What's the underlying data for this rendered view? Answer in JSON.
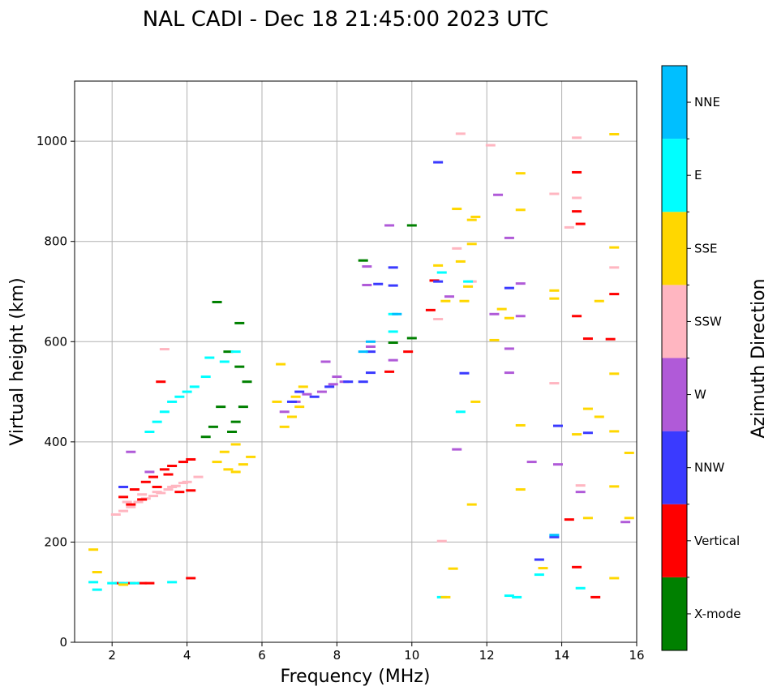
{
  "chart_data": {
    "type": "scatter",
    "title": "NAL CADI - Dec 18 21:45:00 2023 UTC",
    "xlabel": "Frequency (MHz)",
    "ylabel": "Virtual height (km)",
    "xlim": [
      1,
      16
    ],
    "ylim": [
      0,
      1120
    ],
    "xticks": [
      2,
      4,
      6,
      8,
      10,
      12,
      14,
      16
    ],
    "yticks": [
      0,
      200,
      400,
      600,
      800,
      1000
    ],
    "grid": true,
    "colorbar": {
      "label": "Azimuth Direction",
      "categories": [
        {
          "name": "X-mode",
          "color": "#008000"
        },
        {
          "name": "Vertical",
          "color": "#ff0000"
        },
        {
          "name": "NNW",
          "color": "#3a3aff"
        },
        {
          "name": "W",
          "color": "#b05ad8"
        },
        {
          "name": "SSW",
          "color": "#ffb6c1"
        },
        {
          "name": "SSE",
          "color": "#ffd700"
        },
        {
          "name": "E",
          "color": "#00ffff"
        },
        {
          "name": "NNE",
          "color": "#00bfff"
        }
      ]
    },
    "series": [
      {
        "name": "SSW",
        "points": [
          [
            2.1,
            255
          ],
          [
            2.3,
            262
          ],
          [
            2.5,
            270
          ],
          [
            2.7,
            280
          ],
          [
            2.9,
            287
          ],
          [
            3.1,
            292
          ],
          [
            3.3,
            298
          ],
          [
            3.5,
            305
          ],
          [
            3.7,
            312
          ],
          [
            3.9,
            318
          ],
          [
            2.4,
            280
          ],
          [
            2.8,
            295
          ],
          [
            3.2,
            300
          ],
          [
            3.6,
            310
          ],
          [
            4.0,
            320
          ],
          [
            4.3,
            330
          ],
          [
            3.4,
            585
          ],
          [
            10.7,
            645
          ],
          [
            10.8,
            202
          ],
          [
            11.3,
            1015
          ],
          [
            12.1,
            992
          ],
          [
            13.8,
            895
          ],
          [
            13.8,
            517
          ],
          [
            14.2,
            828
          ],
          [
            14.4,
            887
          ],
          [
            14.4,
            1007
          ],
          [
            14.5,
            313
          ],
          [
            15.4,
            748
          ],
          [
            11.6,
            720
          ],
          [
            11.2,
            786
          ]
        ]
      },
      {
        "name": "Vertical",
        "points": [
          [
            2.3,
            290
          ],
          [
            2.6,
            305
          ],
          [
            2.9,
            320
          ],
          [
            3.1,
            330
          ],
          [
            3.4,
            345
          ],
          [
            3.6,
            352
          ],
          [
            3.9,
            360
          ],
          [
            4.1,
            365
          ],
          [
            2.5,
            275
          ],
          [
            2.8,
            285
          ],
          [
            3.2,
            310
          ],
          [
            3.5,
            335
          ],
          [
            3.8,
            300
          ],
          [
            4.1,
            303
          ],
          [
            2.2,
            118
          ],
          [
            2.5,
            118
          ],
          [
            2.8,
            118
          ],
          [
            3.0,
            118
          ],
          [
            4.1,
            128
          ],
          [
            3.3,
            520
          ],
          [
            9.4,
            540
          ],
          [
            9.9,
            580
          ],
          [
            10.6,
            722
          ],
          [
            10.5,
            663
          ],
          [
            14.4,
            651
          ],
          [
            14.4,
            938
          ],
          [
            14.4,
            860
          ],
          [
            14.5,
            835
          ],
          [
            14.7,
            606
          ],
          [
            15.3,
            605
          ],
          [
            15.4,
            695
          ],
          [
            14.4,
            150
          ],
          [
            14.2,
            245
          ],
          [
            14.9,
            90
          ]
        ]
      },
      {
        "name": "X-mode",
        "points": [
          [
            4.8,
            679
          ],
          [
            5.4,
            637
          ],
          [
            5.1,
            580
          ],
          [
            5.4,
            550
          ],
          [
            5.6,
            520
          ],
          [
            5.5,
            470
          ],
          [
            5.3,
            440
          ],
          [
            5.2,
            420
          ],
          [
            4.9,
            470
          ],
          [
            4.7,
            430
          ],
          [
            4.5,
            410
          ],
          [
            8.7,
            762
          ],
          [
            9.5,
            598
          ],
          [
            10.0,
            832
          ],
          [
            10.0,
            607
          ]
        ]
      },
      {
        "name": "E",
        "points": [
          [
            1.5,
            120
          ],
          [
            1.6,
            105
          ],
          [
            2.0,
            118
          ],
          [
            2.3,
            118
          ],
          [
            2.6,
            118
          ],
          [
            3.0,
            420
          ],
          [
            3.2,
            440
          ],
          [
            3.4,
            460
          ],
          [
            3.6,
            480
          ],
          [
            3.8,
            490
          ],
          [
            4.0,
            500
          ],
          [
            4.2,
            510
          ],
          [
            4.5,
            530
          ],
          [
            4.6,
            568
          ],
          [
            5.0,
            560
          ],
          [
            5.3,
            580
          ],
          [
            3.6,
            120
          ],
          [
            9.5,
            655
          ],
          [
            9.5,
            620
          ],
          [
            10.8,
            90
          ],
          [
            10.8,
            738
          ],
          [
            11.3,
            460
          ],
          [
            11.5,
            720
          ],
          [
            12.6,
            93
          ],
          [
            12.8,
            90
          ],
          [
            13.4,
            135
          ],
          [
            14.5,
            108
          ]
        ]
      },
      {
        "name": "SSE",
        "points": [
          [
            1.5,
            185
          ],
          [
            1.6,
            140
          ],
          [
            2.3,
            115
          ],
          [
            4.8,
            360
          ],
          [
            5.1,
            345
          ],
          [
            5.3,
            340
          ],
          [
            5.5,
            355
          ],
          [
            5.7,
            370
          ],
          [
            5.0,
            380
          ],
          [
            5.3,
            395
          ],
          [
            6.6,
            430
          ],
          [
            6.8,
            450
          ],
          [
            7.0,
            470
          ],
          [
            6.9,
            490
          ],
          [
            7.1,
            510
          ],
          [
            6.4,
            480
          ],
          [
            6.5,
            555
          ],
          [
            10.7,
            752
          ],
          [
            10.9,
            90
          ],
          [
            10.9,
            681
          ],
          [
            11.1,
            147
          ],
          [
            11.2,
            865
          ],
          [
            11.3,
            760
          ],
          [
            11.4,
            681
          ],
          [
            11.5,
            710
          ],
          [
            11.6,
            795
          ],
          [
            11.6,
            843
          ],
          [
            11.7,
            480
          ],
          [
            11.6,
            275
          ],
          [
            11.7,
            849
          ],
          [
            12.2,
            603
          ],
          [
            12.4,
            665
          ],
          [
            12.6,
            647
          ],
          [
            12.9,
            936
          ],
          [
            12.9,
            863
          ],
          [
            12.9,
            433
          ],
          [
            12.9,
            305
          ],
          [
            13.8,
            702
          ],
          [
            13.8,
            686
          ],
          [
            13.5,
            148
          ],
          [
            14.4,
            415
          ],
          [
            14.7,
            248
          ],
          [
            14.7,
            466
          ],
          [
            15.0,
            450
          ],
          [
            15.0,
            681
          ],
          [
            15.4,
            1014
          ],
          [
            15.4,
            788
          ],
          [
            15.4,
            536
          ],
          [
            15.4,
            421
          ],
          [
            15.4,
            311
          ],
          [
            15.4,
            128
          ],
          [
            15.8,
            378
          ],
          [
            15.8,
            248
          ]
        ]
      },
      {
        "name": "W",
        "points": [
          [
            2.5,
            380
          ],
          [
            3.0,
            340
          ],
          [
            6.6,
            460
          ],
          [
            6.9,
            480
          ],
          [
            7.2,
            495
          ],
          [
            7.6,
            500
          ],
          [
            7.9,
            515
          ],
          [
            8.2,
            520
          ],
          [
            8.0,
            530
          ],
          [
            7.7,
            560
          ],
          [
            8.8,
            713
          ],
          [
            8.8,
            750
          ],
          [
            8.9,
            590
          ],
          [
            9.4,
            832
          ],
          [
            9.5,
            563
          ],
          [
            12.3,
            893
          ],
          [
            12.6,
            807
          ],
          [
            12.6,
            586
          ],
          [
            12.6,
            538
          ],
          [
            12.9,
            716
          ],
          [
            12.9,
            651
          ],
          [
            13.2,
            360
          ],
          [
            13.9,
            355
          ],
          [
            14.5,
            300
          ],
          [
            15.7,
            240
          ],
          [
            12.2,
            655
          ],
          [
            11.0,
            690
          ],
          [
            11.2,
            385
          ]
        ]
      },
      {
        "name": "NNW",
        "points": [
          [
            2.3,
            310
          ],
          [
            6.8,
            480
          ],
          [
            7.0,
            500
          ],
          [
            7.4,
            490
          ],
          [
            7.8,
            510
          ],
          [
            8.3,
            520
          ],
          [
            8.7,
            520
          ],
          [
            8.9,
            538
          ],
          [
            8.9,
            580
          ],
          [
            9.1,
            715
          ],
          [
            9.5,
            748
          ],
          [
            9.5,
            712
          ],
          [
            10.7,
            958
          ],
          [
            10.7,
            720
          ],
          [
            12.6,
            707
          ],
          [
            13.4,
            165
          ],
          [
            13.8,
            210
          ],
          [
            13.9,
            432
          ],
          [
            14.7,
            418
          ],
          [
            11.4,
            537
          ]
        ]
      },
      {
        "name": "NNE",
        "points": [
          [
            8.7,
            580
          ],
          [
            8.9,
            600
          ],
          [
            9.6,
            655
          ],
          [
            13.8,
            214
          ]
        ]
      }
    ]
  }
}
